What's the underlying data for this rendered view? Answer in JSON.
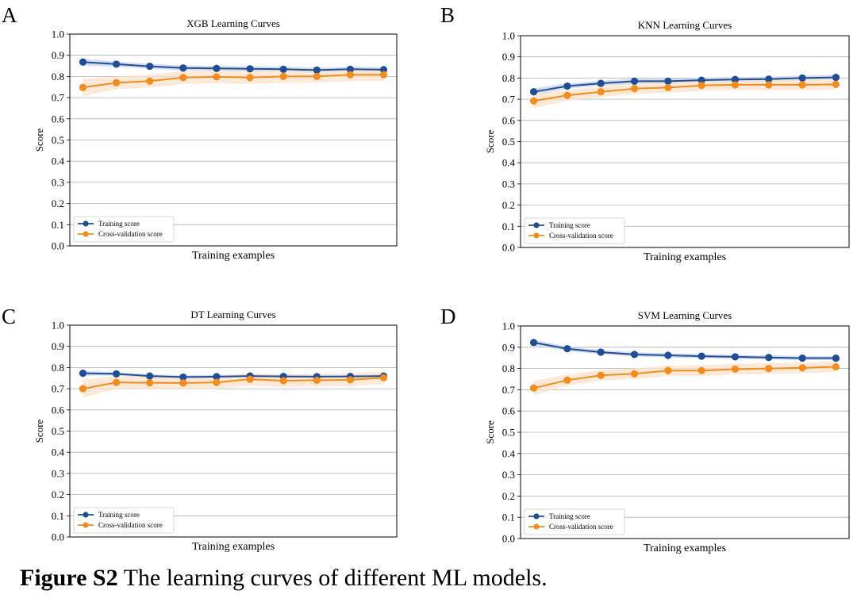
{
  "caption": {
    "label": "Figure S2",
    "text": " The learning curves of different ML models."
  },
  "colors": {
    "training": "#1f4e96",
    "cv": "#f28c1e",
    "training_band": "#c7d3ea",
    "cv_band": "#fbe1c9",
    "grid": "#b0b0b0"
  },
  "chart_data": [
    {
      "panel": "A",
      "type": "line",
      "title": "XGB Learning Curves",
      "xlabel": "Training examples",
      "ylabel": "Score",
      "ylim": [
        0.0,
        1.0
      ],
      "yticks": [
        "0.0",
        "0.1",
        "0.2",
        "0.3",
        "0.4",
        "0.5",
        "0.6",
        "0.7",
        "0.8",
        "0.9",
        "1.0"
      ],
      "grid": "horizontal",
      "legend": "lower-left",
      "series": [
        {
          "name": "Training score",
          "values": [
            0.868,
            0.858,
            0.848,
            0.84,
            0.838,
            0.836,
            0.834,
            0.83,
            0.834,
            0.832
          ],
          "band": 0.012
        },
        {
          "name": "Cross-validation score",
          "values": [
            0.748,
            0.77,
            0.778,
            0.795,
            0.798,
            0.795,
            0.8,
            0.8,
            0.808,
            0.808
          ],
          "band": 0.03
        }
      ]
    },
    {
      "panel": "B",
      "type": "line",
      "title": "KNN Learning Curves",
      "xlabel": "Training examples",
      "ylabel": "Score",
      "ylim": [
        0.0,
        1.0
      ],
      "yticks": [
        "0.0",
        "0.1",
        "0.2",
        "0.3",
        "0.4",
        "0.5",
        "0.6",
        "0.7",
        "0.8",
        "0.9",
        "1.0"
      ],
      "grid": "horizontal",
      "legend": "lower-left",
      "series": [
        {
          "name": "Training score",
          "values": [
            0.735,
            0.762,
            0.775,
            0.785,
            0.785,
            0.79,
            0.793,
            0.795,
            0.8,
            0.803
          ],
          "band": 0.012
        },
        {
          "name": "Cross-validation score",
          "values": [
            0.692,
            0.718,
            0.735,
            0.75,
            0.755,
            0.765,
            0.768,
            0.768,
            0.768,
            0.77
          ],
          "band": 0.025
        }
      ]
    },
    {
      "panel": "C",
      "type": "line",
      "title": "DT Learning Curves",
      "xlabel": "Training examples",
      "ylabel": "Score",
      "ylim": [
        0.0,
        1.0
      ],
      "yticks": [
        "0.0",
        "0.1",
        "0.2",
        "0.3",
        "0.4",
        "0.5",
        "0.6",
        "0.7",
        "0.8",
        "0.9",
        "1.0"
      ],
      "grid": "horizontal",
      "legend": "lower-left",
      "series": [
        {
          "name": "Training score",
          "values": [
            0.773,
            0.77,
            0.76,
            0.755,
            0.757,
            0.76,
            0.758,
            0.757,
            0.758,
            0.76
          ],
          "band": 0.008
        },
        {
          "name": "Cross-validation score",
          "values": [
            0.7,
            0.73,
            0.728,
            0.727,
            0.73,
            0.745,
            0.738,
            0.74,
            0.742,
            0.752
          ],
          "band": 0.03
        }
      ]
    },
    {
      "panel": "D",
      "type": "line",
      "title": "SVM Learning Curves",
      "xlabel": "Training examples",
      "ylabel": "Score",
      "ylim": [
        0.0,
        1.0
      ],
      "yticks": [
        "0.0",
        "0.1",
        "0.2",
        "0.3",
        "0.4",
        "0.5",
        "0.6",
        "0.7",
        "0.8",
        "0.9",
        "1.0"
      ],
      "grid": "horizontal",
      "legend": "lower-left",
      "series": [
        {
          "name": "Training score",
          "values": [
            0.922,
            0.893,
            0.877,
            0.866,
            0.862,
            0.858,
            0.855,
            0.852,
            0.849,
            0.849
          ],
          "band": 0.01
        },
        {
          "name": "Cross-validation score",
          "values": [
            0.708,
            0.745,
            0.768,
            0.775,
            0.79,
            0.79,
            0.797,
            0.8,
            0.803,
            0.808
          ],
          "band": 0.025
        }
      ]
    }
  ]
}
